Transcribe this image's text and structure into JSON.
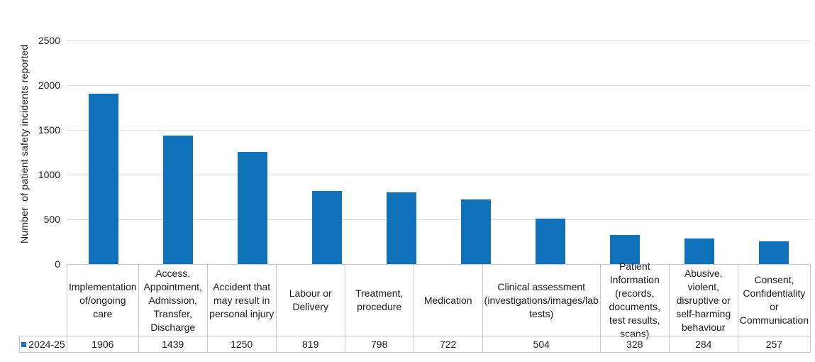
{
  "chart_data": {
    "type": "bar",
    "title": "",
    "xlabel": "",
    "ylabel": "Number  of patient safety incidents reported",
    "categories": [
      "Implementation of/ongoing care",
      "Access, Appointment, Admission, Transfer, Discharge",
      "Accident that may result in personal injury",
      "Labour or Delivery",
      "Treatment, procedure",
      "Medication",
      "Clinical assessment (investigations/images/lab tests)",
      "Patient Information (records, documents, test results, scans)",
      "Abusive, violent, disruptive or self-harming behaviour",
      "Consent, Confidentiality or Communication"
    ],
    "series": [
      {
        "name": "2024-25",
        "values": [
          1906,
          1439,
          1250,
          819,
          798,
          722,
          504,
          328,
          284,
          257
        ]
      }
    ],
    "ylim": [
      0,
      2500
    ],
    "yticks": [
      0,
      500,
      1000,
      1500,
      2000,
      2500
    ],
    "grid": true,
    "legend_position": "data-table-row-left",
    "data_table_shown": true
  },
  "colors": {
    "bar": "#1072BA",
    "gridline": "#D9D9D9",
    "table_border": "#C2C8CF",
    "text": "#1A1A1A",
    "background": "#FFFFFF"
  }
}
